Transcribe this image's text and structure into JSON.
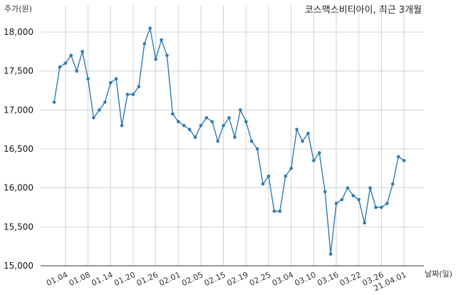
{
  "chart_data": {
    "type": "line",
    "title": "코스맥스비티아이, 최근 3개월",
    "ylabel": "주가(원)",
    "xlabel": "날짜(일)",
    "ylim": [
      15000,
      18000
    ],
    "yticks": [
      15000,
      15500,
      16000,
      16500,
      17000,
      17500,
      18000
    ],
    "ytick_labels": [
      "15,000",
      "15,500",
      "16,000",
      "16,500",
      "17,000",
      "17,500",
      "18,000"
    ],
    "xtick_labels": [
      "01.04",
      "01.08",
      "01.14",
      "01.20",
      "01.26",
      "02.01",
      "02.05",
      "02.15",
      "02.19",
      "02.25",
      "03.04",
      "03.10",
      "03.16",
      "03.22",
      "03.26",
      "21.04.01"
    ],
    "xtick_index": [
      2,
      6,
      10,
      14,
      18,
      22,
      26,
      30,
      34,
      38,
      42,
      46,
      50,
      54,
      58,
      62
    ],
    "grid": true,
    "series": [
      {
        "color": "#2e7bb4",
        "values": [
          17100,
          17550,
          17600,
          17700,
          17500,
          17750,
          17400,
          16900,
          17000,
          17100,
          17350,
          17400,
          16800,
          17200,
          17200,
          17300,
          17850,
          18050,
          17650,
          17900,
          17700,
          16950,
          16850,
          16800,
          16750,
          16650,
          16800,
          16900,
          16850,
          16600,
          16800,
          16900,
          16650,
          17000,
          16850,
          16600,
          16500,
          16050,
          16150,
          15700,
          15700,
          16150,
          16250,
          16750,
          16600,
          16700,
          16350,
          16450,
          15950,
          15150,
          15800,
          15850,
          16000,
          15900,
          15850,
          15550,
          16000,
          15750,
          15750,
          15800,
          16050,
          16400,
          16350
        ]
      }
    ]
  }
}
